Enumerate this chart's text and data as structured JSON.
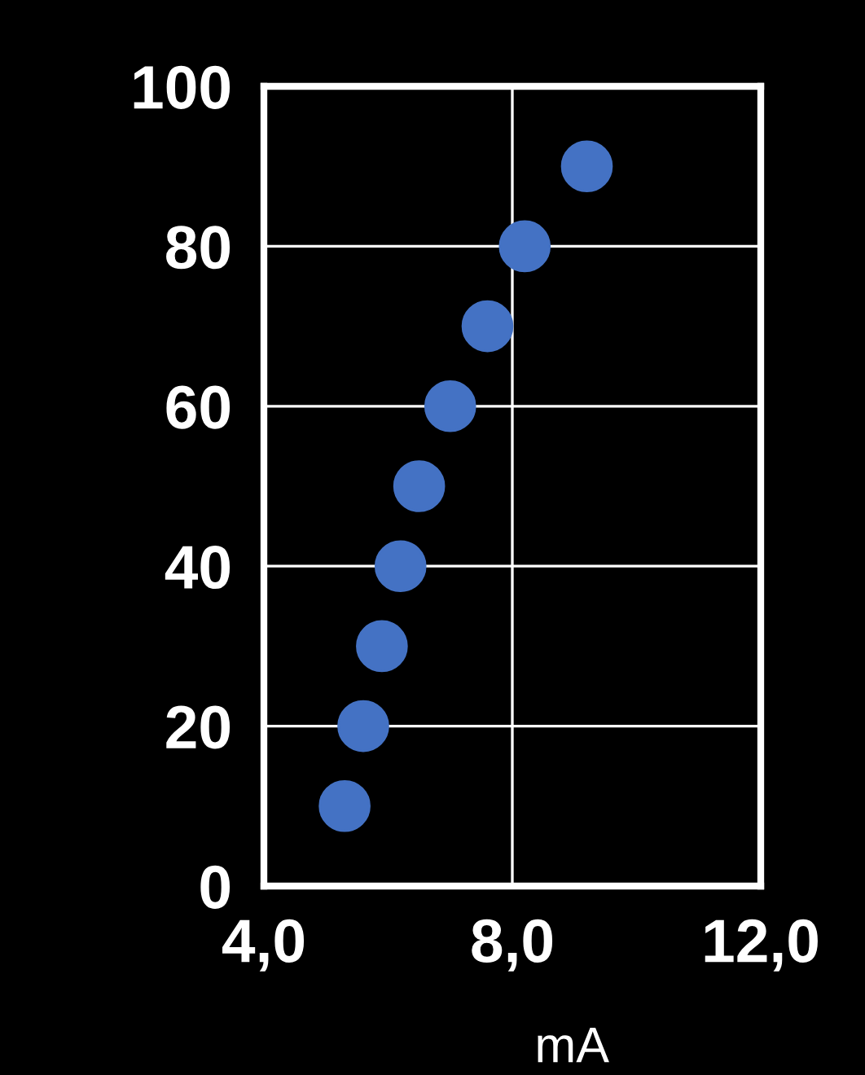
{
  "chart_data": {
    "type": "scatter",
    "xlabel": "mA",
    "x": [
      5.3,
      5.6,
      5.9,
      6.2,
      6.5,
      7.0,
      7.6,
      8.2,
      9.2
    ],
    "series": [
      {
        "color": "#4472c4",
        "values": [
          10,
          20,
          30,
          40,
          50,
          60,
          70,
          80,
          90
        ]
      }
    ],
    "xlim": [
      4,
      12
    ],
    "xticks": [
      {
        "value": 4,
        "label": "4,0"
      },
      {
        "value": 8,
        "label": "8,0"
      },
      {
        "value": 12,
        "label": "12,0"
      }
    ],
    "ylim": [
      0,
      100
    ],
    "yticks": [
      0,
      20,
      40,
      60,
      80,
      100
    ],
    "grid": true,
    "marker": "circle"
  }
}
